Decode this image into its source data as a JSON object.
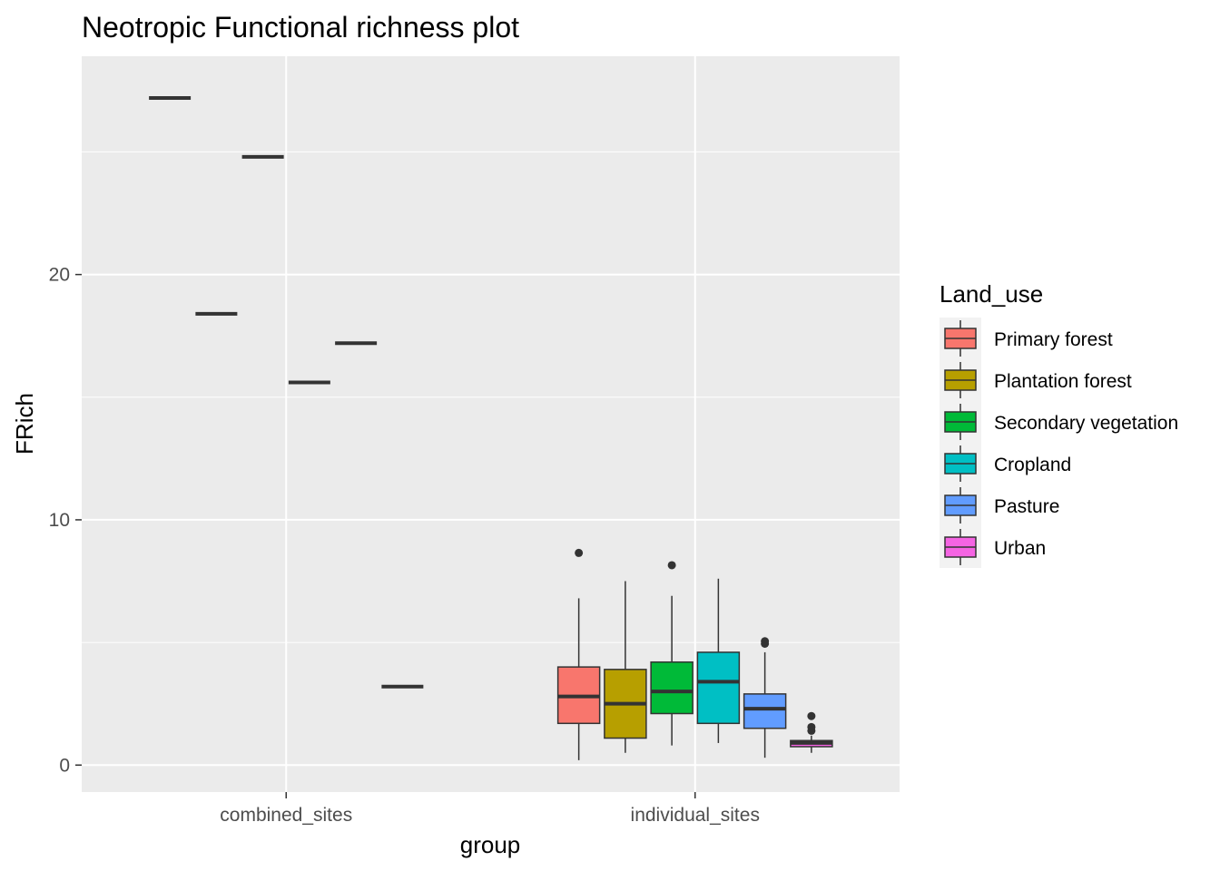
{
  "chart_data": {
    "type": "box",
    "title": "Neotropic Functional richness plot",
    "xlabel": "group",
    "ylabel": "FRich",
    "categories": [
      "combined_sites",
      "individual_sites"
    ],
    "y_ticks": [
      0,
      10,
      20
    ],
    "ylim": [
      -1.1,
      28.9
    ],
    "grid": true,
    "legend": {
      "title": "Land_use",
      "placement": "right",
      "entries": [
        "Primary forest",
        "Plantation forest",
        "Secondary vegetation",
        "Cropland",
        "Pasture",
        "Urban"
      ]
    },
    "colors": {
      "Primary forest": "#f8766d",
      "Plantation forest": "#b79f00",
      "Secondary vegetation": "#00ba38",
      "Cropland": "#00bfc4",
      "Pasture": "#619cff",
      "Urban": "#f564e3"
    },
    "series": [
      {
        "name": "Primary forest",
        "combined_sites": 27.2,
        "individual_sites": {
          "min": 0.2,
          "q1": 1.7,
          "median": 2.8,
          "q3": 4.0,
          "max": 6.8,
          "outliers": [
            8.65
          ]
        }
      },
      {
        "name": "Plantation forest",
        "combined_sites": 18.4,
        "individual_sites": {
          "min": 0.5,
          "q1": 1.1,
          "median": 2.5,
          "q3": 3.9,
          "max": 7.5,
          "outliers": []
        }
      },
      {
        "name": "Secondary vegetation",
        "combined_sites": 24.8,
        "individual_sites": {
          "min": 0.8,
          "q1": 2.1,
          "median": 3.0,
          "q3": 4.2,
          "max": 6.9,
          "outliers": [
            8.15
          ]
        }
      },
      {
        "name": "Cropland",
        "combined_sites": 15.6,
        "individual_sites": {
          "min": 0.9,
          "q1": 1.7,
          "median": 3.4,
          "q3": 4.6,
          "max": 7.6,
          "outliers": []
        }
      },
      {
        "name": "Pasture",
        "combined_sites": 17.2,
        "individual_sites": {
          "min": 0.3,
          "q1": 1.5,
          "median": 2.3,
          "q3": 2.9,
          "max": 4.6,
          "outliers": [
            4.95,
            5.05
          ]
        }
      },
      {
        "name": "Urban",
        "combined_sites": 3.2,
        "individual_sites": {
          "min": 0.5,
          "q1": 0.75,
          "median": 0.9,
          "q3": 1.0,
          "max": 1.2,
          "outliers": [
            1.4,
            1.55,
            2.0
          ]
        }
      }
    ]
  }
}
